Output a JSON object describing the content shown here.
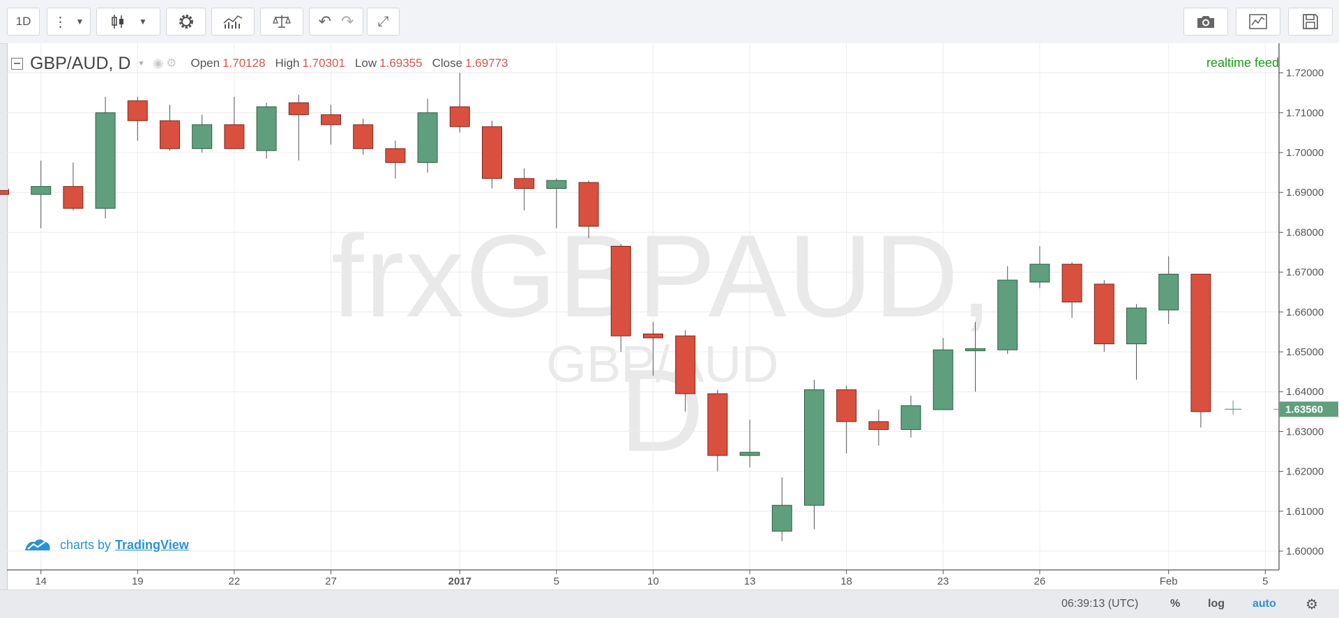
{
  "toolbar": {
    "interval": "1D"
  },
  "legend": {
    "symbol": "GBP/AUD, D",
    "open_label": "Open",
    "open": "1.70128",
    "high_label": "High",
    "high": "1.70301",
    "low_label": "Low",
    "low": "1.69355",
    "close_label": "Close",
    "close": "1.69773"
  },
  "realtime_label": "realtime feed",
  "watermark": {
    "main": "frxGBPAUD, D",
    "sub": "GBP/AUD"
  },
  "branding": {
    "prefix": "charts by",
    "link": "TradingView"
  },
  "statusbar": {
    "time": "06:39:13 (UTC)",
    "percent": "%",
    "log": "log",
    "auto": "auto"
  },
  "colors": {
    "up": "#5f9f7d",
    "down": "#d9503f",
    "text_down": "#d9534f",
    "realtime": "#1a9a1a",
    "accent": "#2a93d5"
  },
  "chart_data": {
    "type": "candlestick",
    "ylim": [
      1.595,
      1.725
    ],
    "y_ticks": [
      "1.60000",
      "1.61000",
      "1.62000",
      "1.63000",
      "1.64000",
      "1.65000",
      "1.66000",
      "1.67000",
      "1.68000",
      "1.69000",
      "1.70000",
      "1.71000",
      "1.72000"
    ],
    "x_ticks": [
      {
        "i": 1,
        "label": "14"
      },
      {
        "i": 4,
        "label": "19"
      },
      {
        "i": 7,
        "label": "22"
      },
      {
        "i": 10,
        "label": "27"
      },
      {
        "i": 14,
        "label": "2017",
        "bold": true
      },
      {
        "i": 17,
        "label": "5"
      },
      {
        "i": 20,
        "label": "10"
      },
      {
        "i": 23,
        "label": "13"
      },
      {
        "i": 26,
        "label": "18"
      },
      {
        "i": 29,
        "label": "23"
      },
      {
        "i": 32,
        "label": "26"
      },
      {
        "i": 36,
        "label": "Feb"
      },
      {
        "i": 39,
        "label": "5"
      }
    ],
    "last_price": "1.63560",
    "candles": [
      {
        "o": 1.6905,
        "h": 1.691,
        "l": 1.6895,
        "c": 1.6895
      },
      {
        "o": 1.6895,
        "h": 1.698,
        "l": 1.681,
        "c": 1.6915
      },
      {
        "o": 1.6915,
        "h": 1.6975,
        "l": 1.6855,
        "c": 1.686
      },
      {
        "o": 1.686,
        "h": 1.714,
        "l": 1.6835,
        "c": 1.71
      },
      {
        "o": 1.713,
        "h": 1.714,
        "l": 1.703,
        "c": 1.708
      },
      {
        "o": 1.708,
        "h": 1.712,
        "l": 1.7005,
        "c": 1.701
      },
      {
        "o": 1.701,
        "h": 1.7095,
        "l": 1.7,
        "c": 1.707
      },
      {
        "o": 1.707,
        "h": 1.714,
        "l": 1.701,
        "c": 1.701
      },
      {
        "o": 1.7005,
        "h": 1.7125,
        "l": 1.6985,
        "c": 1.7115
      },
      {
        "o": 1.7125,
        "h": 1.7145,
        "l": 1.698,
        "c": 1.7095
      },
      {
        "o": 1.7095,
        "h": 1.712,
        "l": 1.702,
        "c": 1.707
      },
      {
        "o": 1.707,
        "h": 1.7085,
        "l": 1.6995,
        "c": 1.701
      },
      {
        "o": 1.701,
        "h": 1.703,
        "l": 1.6935,
        "c": 1.6975
      },
      {
        "o": 1.6975,
        "h": 1.7135,
        "l": 1.695,
        "c": 1.71
      },
      {
        "o": 1.7115,
        "h": 1.72,
        "l": 1.705,
        "c": 1.7065
      },
      {
        "o": 1.7065,
        "h": 1.708,
        "l": 1.691,
        "c": 1.6935
      },
      {
        "o": 1.6935,
        "h": 1.696,
        "l": 1.6855,
        "c": 1.691
      },
      {
        "o": 1.691,
        "h": 1.6935,
        "l": 1.681,
        "c": 1.693
      },
      {
        "o": 1.6925,
        "h": 1.693,
        "l": 1.6785,
        "c": 1.6815
      },
      {
        "o": 1.6765,
        "h": 1.677,
        "l": 1.65,
        "c": 1.654
      },
      {
        "o": 1.6545,
        "h": 1.6575,
        "l": 1.644,
        "c": 1.6535
      },
      {
        "o": 1.654,
        "h": 1.6555,
        "l": 1.635,
        "c": 1.6395
      },
      {
        "o": 1.6395,
        "h": 1.6405,
        "l": 1.62,
        "c": 1.624
      },
      {
        "o": 1.624,
        "h": 1.633,
        "l": 1.621,
        "c": 1.6248
      },
      {
        "o": 1.605,
        "h": 1.6185,
        "l": 1.6025,
        "c": 1.6115
      },
      {
        "o": 1.6115,
        "h": 1.643,
        "l": 1.6055,
        "c": 1.6405
      },
      {
        "o": 1.6405,
        "h": 1.6415,
        "l": 1.6245,
        "c": 1.6325
      },
      {
        "o": 1.6325,
        "h": 1.6355,
        "l": 1.6265,
        "c": 1.6305
      },
      {
        "o": 1.6305,
        "h": 1.639,
        "l": 1.6285,
        "c": 1.6365
      },
      {
        "o": 1.6355,
        "h": 1.6535,
        "l": 1.6355,
        "c": 1.6505
      },
      {
        "o": 1.6505,
        "h": 1.6575,
        "l": 1.64,
        "c": 1.6508
      },
      {
        "o": 1.6505,
        "h": 1.6715,
        "l": 1.6495,
        "c": 1.668
      },
      {
        "o": 1.6675,
        "h": 1.6765,
        "l": 1.666,
        "c": 1.672
      },
      {
        "o": 1.672,
        "h": 1.6725,
        "l": 1.6585,
        "c": 1.6625
      },
      {
        "o": 1.667,
        "h": 1.668,
        "l": 1.65,
        "c": 1.652
      },
      {
        "o": 1.652,
        "h": 1.662,
        "l": 1.643,
        "c": 1.661
      },
      {
        "o": 1.6605,
        "h": 1.674,
        "l": 1.657,
        "c": 1.6695
      },
      {
        "o": 1.6695,
        "h": 1.6695,
        "l": 1.631,
        "c": 1.635
      },
      {
        "o": 1.6356,
        "h": 1.6378,
        "l": 1.6342,
        "c": 1.6356
      }
    ]
  }
}
